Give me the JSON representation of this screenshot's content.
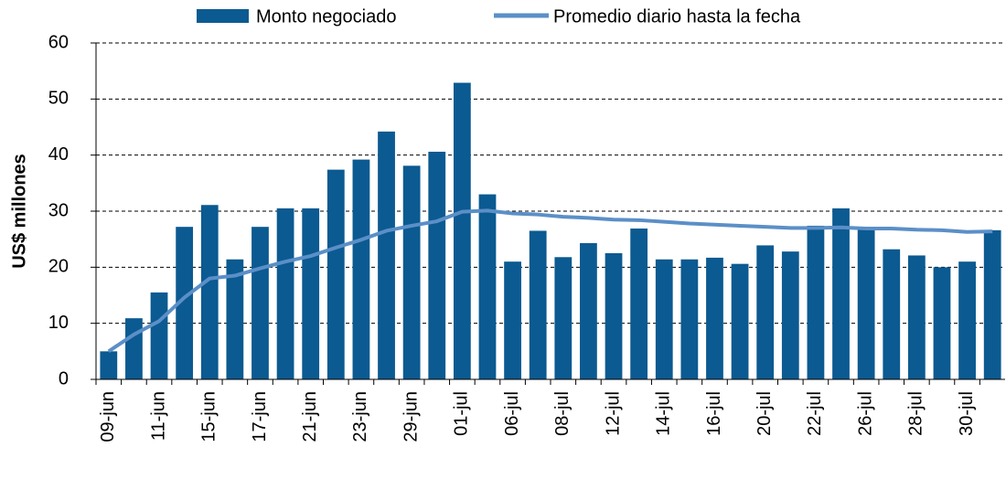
{
  "chart_data": {
    "type": "bar",
    "ylabel": "US$ millones",
    "categories": [
      "09-jun",
      null,
      "11-jun",
      null,
      "15-jun",
      null,
      "17-jun",
      null,
      "21-jun",
      null,
      "23-jun",
      null,
      "29-jun",
      null,
      "01-jul",
      null,
      "06-jul",
      null,
      "08-jul",
      null,
      "12-jul",
      null,
      "14-jul",
      null,
      "16-jul",
      null,
      "20-jul",
      null,
      "22-jul",
      null,
      "26-jul",
      null,
      "28-jul",
      null,
      "30-jul",
      null
    ],
    "series": [
      {
        "name": "Monto negociado",
        "type": "bar",
        "color": "#0b5a91",
        "values": [
          5.0,
          10.9,
          15.5,
          27.2,
          31.1,
          21.4,
          27.2,
          30.5,
          30.5,
          37.4,
          39.2,
          44.2,
          38.1,
          40.6,
          52.9,
          33.0,
          21.0,
          26.5,
          21.8,
          24.3,
          22.5,
          26.9,
          21.4,
          21.4,
          21.7,
          20.6,
          23.9,
          22.8,
          27.4,
          30.5,
          26.7,
          23.2,
          22.1,
          20.0,
          21.0,
          26.6
        ]
      },
      {
        "name": "Promedio diario hasta la fecha",
        "type": "line",
        "color": "#5b8fc7",
        "values": [
          5.0,
          8.0,
          10.4,
          14.6,
          18.0,
          18.5,
          19.8,
          21.0,
          22.0,
          23.5,
          24.9,
          26.5,
          27.4,
          28.2,
          29.9,
          30.1,
          29.6,
          29.4,
          29.0,
          28.8,
          28.5,
          28.4,
          28.1,
          27.8,
          27.6,
          27.4,
          27.2,
          27.0,
          27.0,
          27.1,
          26.9,
          26.9,
          26.7,
          26.6,
          26.3,
          26.4
        ]
      }
    ],
    "ylim": [
      0,
      60
    ],
    "yticks": [
      0,
      10,
      20,
      30,
      40,
      50,
      60
    ],
    "grid": true,
    "legend": "top"
  }
}
